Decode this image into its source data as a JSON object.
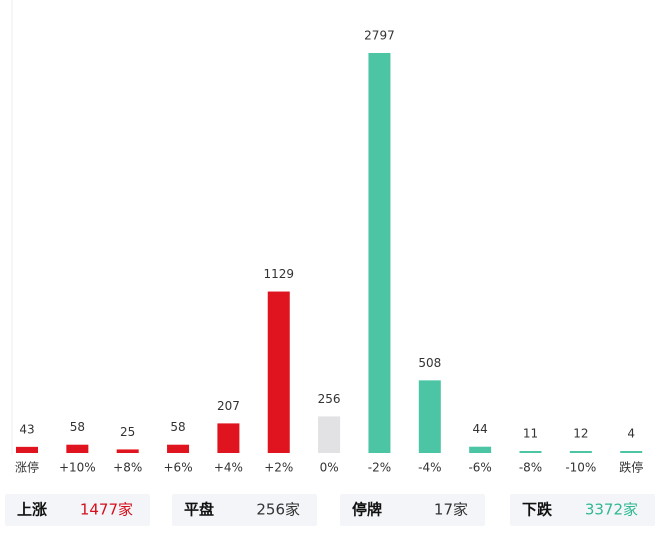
{
  "chart_data": {
    "type": "bar",
    "categories": [
      "涨停",
      "+10%",
      "+8%",
      "+6%",
      "+4%",
      "+2%",
      "0%",
      "-2%",
      "-4%",
      "-6%",
      "-8%",
      "-10%",
      "跌停"
    ],
    "values": [
      43,
      58,
      25,
      58,
      207,
      1129,
      256,
      2797,
      508,
      44,
      11,
      12,
      4
    ],
    "colors": [
      "#e0141e",
      "#e0141e",
      "#e0141e",
      "#e0141e",
      "#e0141e",
      "#e0141e",
      "#e2e2e4",
      "#4cc5a5",
      "#4cc5a5",
      "#4cc5a5",
      "#4cc5a5",
      "#4cc5a5",
      "#4cc5a5"
    ]
  },
  "summary": [
    {
      "label": "上涨",
      "value": "1477家",
      "color": "#d4101c"
    },
    {
      "label": "平盘",
      "value": "256家",
      "color": "#333333"
    },
    {
      "label": "停牌",
      "value": "17家",
      "color": "#333333"
    },
    {
      "label": "下跌",
      "value": "3372家",
      "color": "#2fb893"
    }
  ]
}
